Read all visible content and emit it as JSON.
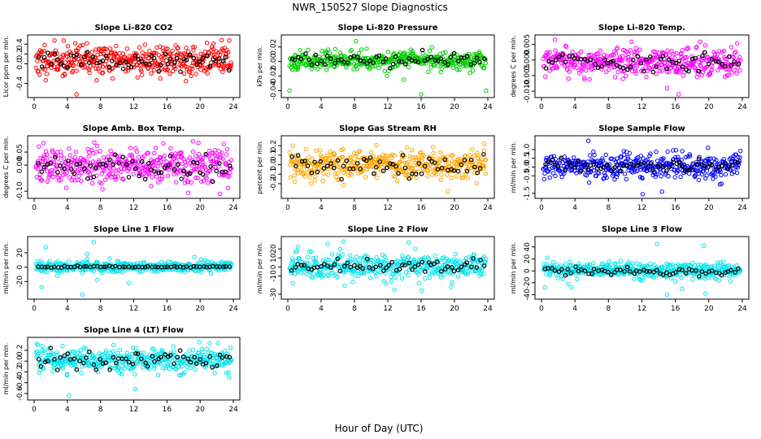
{
  "figure": {
    "title": "NWR_150527  Slope Diagnostics",
    "xlabel": "Hour of Day (UTC)"
  },
  "chart_data": [
    {
      "type": "scatter",
      "title": "Slope Li-820 CO2",
      "ylabel": "Licor ppm per min.",
      "color": "#ff0000",
      "xlim": [
        0,
        24
      ],
      "ylim": [
        -0.62,
        0.52
      ],
      "xticks": [
        "0",
        "4",
        "8",
        "12",
        "16",
        "20",
        "24"
      ],
      "yticks": [
        {
          "v": -0.4,
          "label": "-0.4"
        },
        {
          "v": 0.0,
          "label": "0.0"
        },
        {
          "v": 0.2,
          "label": "0.2"
        },
        {
          "v": 0.4,
          "label": "0.4"
        }
      ],
      "center": 0.07,
      "spread": 0.16,
      "blackSpread": 0.1,
      "outliers": [
        [
          5.1,
          -0.62
        ],
        [
          22.6,
          0.48
        ],
        [
          18.3,
          -0.35
        ]
      ],
      "seed": 11
    },
    {
      "type": "scatter",
      "title": "Slope Li-820 Pressure",
      "ylabel": "kPa per min.",
      "color": "#00cc00",
      "xlim": [
        0,
        24
      ],
      "ylim": [
        -0.045,
        0.032
      ],
      "xticks": [
        "0",
        "4",
        "8",
        "12",
        "16",
        "20",
        "24"
      ],
      "yticks": [
        {
          "v": -0.04,
          "label": "-0.04"
        },
        {
          "v": -0.02,
          "label": "-0.02"
        },
        {
          "v": 0.0,
          "label": "0.00"
        },
        {
          "v": 0.02,
          "label": "0.02"
        }
      ],
      "center": 0.002,
      "spread": 0.006,
      "blackSpread": 0.004,
      "outliers": [
        [
          0.2,
          -0.04
        ],
        [
          13.9,
          -0.025
        ],
        [
          16.0,
          -0.045
        ],
        [
          23.8,
          -0.04
        ],
        [
          8.2,
          0.028
        ]
      ],
      "seed": 23
    },
    {
      "type": "scatter",
      "title": "Slope Li-820 Temp.",
      "ylabel": "degrees C per min.",
      "color": "#ff00ff",
      "xlim": [
        0,
        24
      ],
      "ylim": [
        -0.011,
        0.007
      ],
      "xticks": [
        "0",
        "4",
        "8",
        "12",
        "16",
        "20",
        "24"
      ],
      "yticks": [
        {
          "v": -0.01,
          "label": "-0.010"
        },
        {
          "v": -0.005,
          "label": "-0.005"
        },
        {
          "v": 0.0,
          "label": "0.000"
        },
        {
          "v": 0.005,
          "label": "0.005"
        }
      ],
      "center": -0.0008,
      "spread": 0.0022,
      "blackSpread": 0.0014,
      "outliers": [
        [
          1.6,
          0.0065
        ],
        [
          16.4,
          -0.011
        ],
        [
          15.0,
          -0.009
        ]
      ],
      "seed": 37
    },
    {
      "type": "scatter",
      "title": "Slope Amb. Box Temp.",
      "ylabel": "degrees C per min.",
      "color": "#ff00ff",
      "xlim": [
        0,
        24
      ],
      "ylim": [
        -0.115,
        0.1
      ],
      "xticks": [
        "0",
        "4",
        "8",
        "12",
        "16",
        "20",
        "24"
      ],
      "yticks": [
        {
          "v": -0.1,
          "label": "-0.10"
        },
        {
          "v": 0.0,
          "label": "0.00"
        },
        {
          "v": 0.05,
          "label": "0.05"
        }
      ],
      "center": -0.005,
      "spread": 0.035,
      "blackSpread": 0.025,
      "outliers": [
        [
          19.8,
          0.085
        ],
        [
          14.1,
          -0.08
        ],
        [
          22.4,
          -0.11
        ]
      ],
      "seed": 41
    },
    {
      "type": "scatter",
      "title": "Slope Gas Stream RH",
      "ylabel": "percent per min.",
      "color": "#ffa500",
      "xlim": [
        0,
        24
      ],
      "ylim": [
        -0.32,
        0.27
      ],
      "xticks": [
        "0",
        "4",
        "8",
        "12",
        "16",
        "20",
        "24"
      ],
      "yticks": [
        {
          "v": -0.2,
          "label": "-0.2"
        },
        {
          "v": -0.1,
          "label": "-0.1"
        },
        {
          "v": 0.0,
          "label": "0.0"
        },
        {
          "v": 0.1,
          "label": "0.1"
        },
        {
          "v": 0.2,
          "label": "0.2"
        }
      ],
      "center": 0.0,
      "spread": 0.075,
      "blackSpread": 0.06,
      "outliers": [
        [
          0.6,
          0.2
        ],
        [
          19.2,
          -0.28
        ],
        [
          23.6,
          0.22
        ]
      ],
      "seed": 53
    },
    {
      "type": "scatter",
      "title": "Slope Sample Flow",
      "ylabel": "ml/min per min.",
      "color": "#0000ff",
      "xlim": [
        0,
        24
      ],
      "ylim": [
        -1.6,
        1.6
      ],
      "xticks": [
        "0",
        "4",
        "8",
        "12",
        "16",
        "20",
        "24"
      ],
      "yticks": [
        {
          "v": -1.5,
          "label": "-1.5"
        },
        {
          "v": -0.5,
          "label": "-0.5"
        },
        {
          "v": 0.0,
          "label": "0.0"
        },
        {
          "v": 0.5,
          "label": "0.5"
        },
        {
          "v": 1.0,
          "label": "1.0"
        }
      ],
      "center": 0.05,
      "spread": 0.32,
      "blackSpread": 0.18,
      "outliers": [
        [
          5.6,
          1.5
        ],
        [
          12.1,
          -1.55
        ],
        [
          19.9,
          1.1
        ],
        [
          14.4,
          -1.4
        ]
      ],
      "seed": 67
    },
    {
      "type": "scatter",
      "title": "Slope Line 1 Flow",
      "ylabel": "ml/min per min.",
      "color": "#00e5ee",
      "xlim": [
        0,
        24
      ],
      "ylim": [
        -40,
        38
      ],
      "xticks": [
        "0",
        "4",
        "8",
        "12",
        "16",
        "20",
        "24"
      ],
      "yticks": [
        {
          "v": -20,
          "label": "-20"
        },
        {
          "v": 0,
          "label": "0"
        },
        {
          "v": 20,
          "label": "20"
        }
      ],
      "center": 0.5,
      "spread": 3.5,
      "blackSpread": 0.6,
      "outliers": [
        [
          1.4,
          28
        ],
        [
          0.9,
          -28
        ],
        [
          7.2,
          35
        ],
        [
          6.4,
          18
        ],
        [
          7.6,
          -18
        ],
        [
          5.8,
          -38
        ],
        [
          9.1,
          12
        ],
        [
          11.4,
          -22
        ],
        [
          19.3,
          14
        ],
        [
          2.8,
          -12
        ]
      ],
      "seed": 79
    },
    {
      "type": "scatter",
      "title": "Slope Line 2 Flow",
      "ylabel": "ml/min per min.",
      "color": "#00e5ee",
      "xlim": [
        0,
        24
      ],
      "ylim": [
        -32,
        30
      ],
      "xticks": [
        "0",
        "4",
        "8",
        "12",
        "16",
        "20",
        "24"
      ],
      "yticks": [
        {
          "v": -30,
          "label": "-30"
        },
        {
          "v": -10,
          "label": "-10"
        },
        {
          "v": 0,
          "label": "0"
        },
        {
          "v": 10,
          "label": "10"
        },
        {
          "v": 20,
          "label": "20"
        }
      ],
      "center": 1.0,
      "spread": 6.5,
      "blackSpread": 4.0,
      "outliers": [
        [
          1.2,
          22
        ],
        [
          4.8,
          25
        ],
        [
          6.7,
          28
        ],
        [
          14.5,
          27
        ],
        [
          15.3,
          20
        ],
        [
          19.6,
          -22
        ],
        [
          19.7,
          -17
        ],
        [
          0.6,
          -18
        ],
        [
          12.8,
          -25
        ],
        [
          16.1,
          -26
        ]
      ],
      "seed": 83
    },
    {
      "type": "scatter",
      "title": "Slope Line 3 Flow",
      "ylabel": "ml/min per min.",
      "color": "#00e5ee",
      "xlim": [
        0,
        24
      ],
      "ylim": [
        -42,
        52
      ],
      "xticks": [
        "0",
        "4",
        "8",
        "12",
        "16",
        "20",
        "24"
      ],
      "yticks": [
        {
          "v": -40,
          "label": "-40"
        },
        {
          "v": -20,
          "label": "-20"
        },
        {
          "v": 0,
          "label": "0"
        },
        {
          "v": 20,
          "label": "20"
        },
        {
          "v": 40,
          "label": "40"
        }
      ],
      "center": 0.5,
      "spread": 7.0,
      "blackSpread": 4.0,
      "outliers": [
        [
          3.2,
          -22
        ],
        [
          3.6,
          -28
        ],
        [
          13.8,
          45
        ],
        [
          15.0,
          -40
        ],
        [
          19.6,
          -38
        ],
        [
          19.4,
          42
        ],
        [
          0.4,
          -28
        ],
        [
          16.8,
          -30
        ]
      ],
      "seed": 97
    },
    {
      "type": "scatter",
      "title": "Slope Line 4 (LT) Flow",
      "ylabel": "ml/min per min.",
      "color": "#00e5ee",
      "xlim": [
        0,
        24
      ],
      "ylim": [
        -0.66,
        0.38
      ],
      "xticks": [
        "0",
        "4",
        "8",
        "12",
        "16",
        "20",
        "24"
      ],
      "yticks": [
        {
          "v": -0.6,
          "label": "-0.6"
        },
        {
          "v": -0.4,
          "label": "-0.4"
        },
        {
          "v": -0.2,
          "label": "-0.2"
        },
        {
          "v": 0.0,
          "label": "0.0"
        },
        {
          "v": 0.2,
          "label": "0.2"
        }
      ],
      "center": 0.02,
      "spread": 0.11,
      "blackSpread": 0.09,
      "outliers": [
        [
          4.2,
          -0.64
        ],
        [
          12.2,
          -0.52
        ],
        [
          0.3,
          0.32
        ],
        [
          19.9,
          0.35
        ],
        [
          23.5,
          -0.3
        ]
      ],
      "seed": 101
    }
  ]
}
